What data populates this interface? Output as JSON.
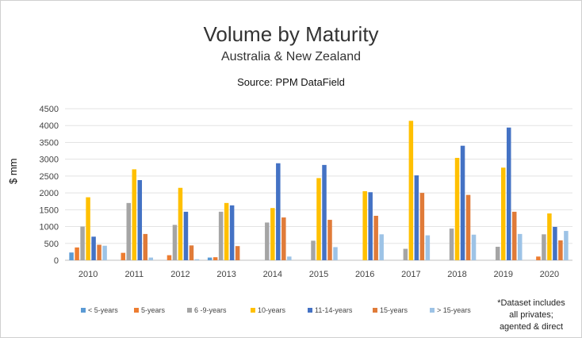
{
  "chart_data": {
    "type": "bar",
    "title": "Volume by Maturity",
    "subtitle": "Australia & New Zealand",
    "source": "Source: PPM DataField",
    "ylabel": "$ mm",
    "xlabel": "",
    "ylim": [
      0,
      4500
    ],
    "yticks": [
      0,
      500,
      1000,
      1500,
      2000,
      2500,
      3000,
      3500,
      4000,
      4500
    ],
    "grid": true,
    "legend_position": "bottom",
    "categories": [
      "2010",
      "2011",
      "2012",
      "2013",
      "2014",
      "2015",
      "2016",
      "2017",
      "2018",
      "2019",
      "2020"
    ],
    "series": [
      {
        "name": "< 5-years",
        "color": "#5b9bd5",
        "values": [
          230,
          0,
          0,
          80,
          0,
          0,
          0,
          0,
          0,
          0,
          0
        ]
      },
      {
        "name": "5-years",
        "color": "#ed7d31",
        "values": [
          380,
          220,
          150,
          90,
          0,
          0,
          0,
          0,
          0,
          0,
          110
        ]
      },
      {
        "name": "6 -9-years",
        "color": "#a5a5a5",
        "values": [
          1000,
          1700,
          1050,
          1440,
          1120,
          580,
          0,
          340,
          940,
          400,
          770
        ]
      },
      {
        "name": "10-years",
        "color": "#ffc000",
        "values": [
          1870,
          2700,
          2150,
          1700,
          1550,
          2440,
          2050,
          4140,
          3040,
          2750,
          1390
        ]
      },
      {
        "name": "11-14-years",
        "color": "#4472c4",
        "values": [
          700,
          2380,
          1440,
          1630,
          2880,
          2830,
          2020,
          2520,
          3400,
          3940,
          990
        ]
      },
      {
        "name": "15-years",
        "color": "#e07b39",
        "values": [
          460,
          780,
          440,
          420,
          1270,
          1200,
          1320,
          2000,
          1940,
          1440,
          590
        ]
      },
      {
        "name": "> 15-years",
        "color": "#9dc3e6",
        "values": [
          430,
          80,
          30,
          0,
          110,
          390,
          770,
          740,
          760,
          780,
          870
        ]
      }
    ],
    "footnote": [
      "*Dataset includes",
      "all privates;",
      "agented & direct"
    ]
  }
}
